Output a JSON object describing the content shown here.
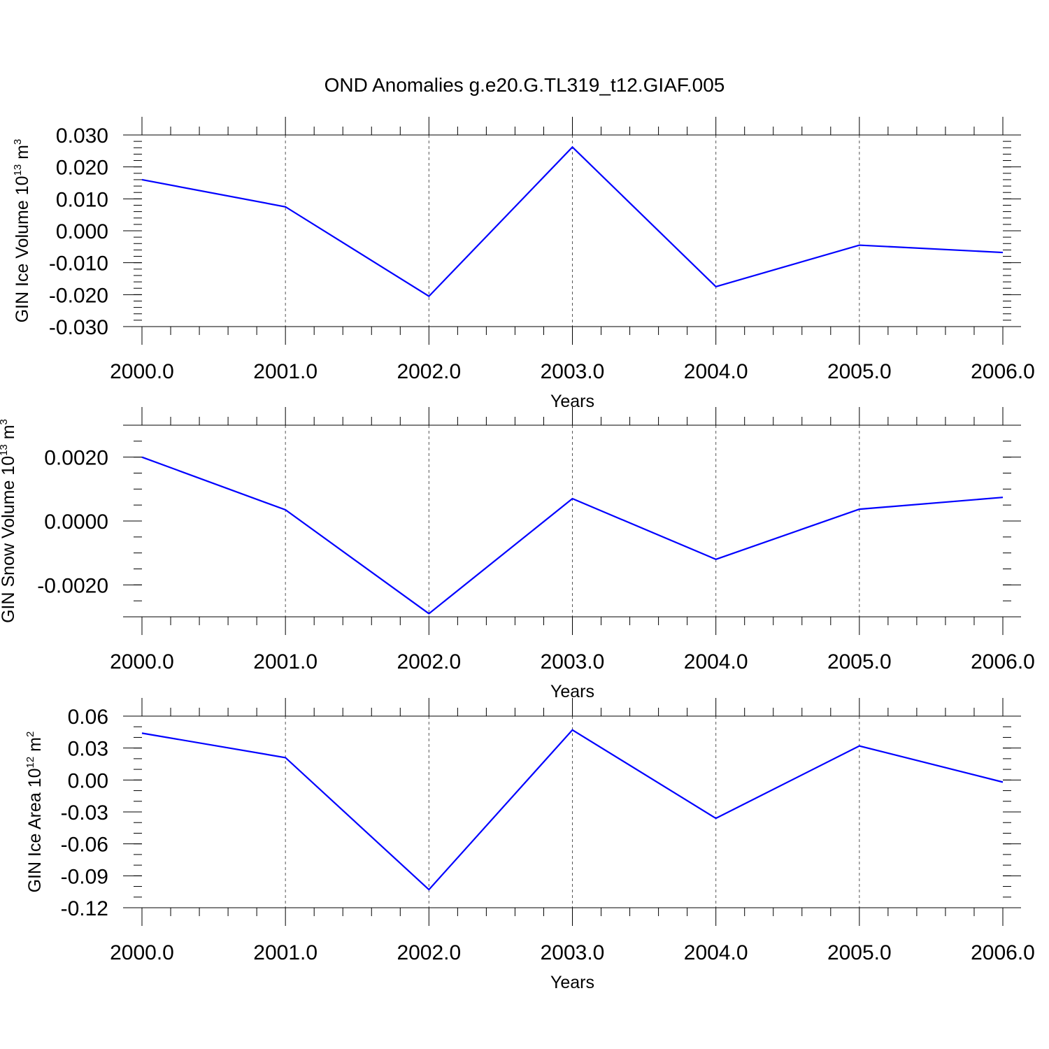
{
  "title": "OND Anomalies g.e20.G.TL319_t12.GIAF.005",
  "colors": {
    "line": "#0000ff",
    "axis": "#000000",
    "grid": "#555555"
  },
  "chart_data": [
    {
      "type": "line",
      "xlabel": "Years",
      "ylabel": {
        "text": "GIN Ice Volume 10",
        "exp": "13",
        "unit": " m",
        "unit_exp": "3"
      },
      "x": [
        2000,
        2001,
        2002,
        2003,
        2004,
        2005,
        2006
      ],
      "xticks": [
        "2000.0",
        "2001.0",
        "2002.0",
        "2003.0",
        "2004.0",
        "2005.0",
        "2006.0"
      ],
      "xlim": [
        2000,
        2006
      ],
      "ylim": [
        -0.03,
        0.03
      ],
      "yticks": [
        0.03,
        0.02,
        0.01,
        0.0,
        -0.01,
        -0.02,
        -0.03
      ],
      "ytick_labels": [
        "0.030",
        "0.020",
        "0.010",
        "0.000",
        "-0.010",
        "-0.020",
        "-0.030"
      ],
      "yminor_step": 0.002,
      "grid": "vertical dashed at major x ticks",
      "series": [
        {
          "values": [
            0.016,
            0.0075,
            -0.0205,
            0.0262,
            -0.0175,
            -0.0045,
            -0.0068
          ]
        }
      ]
    },
    {
      "type": "line",
      "xlabel": "Years",
      "ylabel": {
        "text": "GIN Snow Volume 10",
        "exp": "13",
        "unit": " m",
        "unit_exp": "3"
      },
      "x": [
        2000,
        2001,
        2002,
        2003,
        2004,
        2005,
        2006
      ],
      "xticks": [
        "2000.0",
        "2001.0",
        "2002.0",
        "2003.0",
        "2004.0",
        "2005.0",
        "2006.0"
      ],
      "xlim": [
        2000,
        2006
      ],
      "ylim": [
        -0.003,
        0.003
      ],
      "yticks": [
        0.002,
        0.0,
        -0.002
      ],
      "ytick_labels": [
        "0.0020",
        "0.0000",
        "-0.0020"
      ],
      "yminor_step": 0.0005,
      "grid": "vertical dashed at major x ticks",
      "series": [
        {
          "values": [
            0.002,
            0.00035,
            -0.0029,
            0.0007,
            -0.0012,
            0.00037,
            0.00074
          ]
        }
      ]
    },
    {
      "type": "line",
      "xlabel": "Years",
      "ylabel": {
        "text": "GIN Ice Area 10",
        "exp": "12",
        "unit": " m",
        "unit_exp": "2"
      },
      "x": [
        2000,
        2001,
        2002,
        2003,
        2004,
        2005,
        2006
      ],
      "xticks": [
        "2000.0",
        "2001.0",
        "2002.0",
        "2003.0",
        "2004.0",
        "2005.0",
        "2006.0"
      ],
      "xlim": [
        2000,
        2006
      ],
      "ylim": [
        -0.12,
        0.06
      ],
      "yticks": [
        0.06,
        0.03,
        0.0,
        -0.03,
        -0.06,
        -0.09,
        -0.12
      ],
      "ytick_labels": [
        "0.06",
        "0.03",
        "0.00",
        "-0.03",
        "-0.06",
        "-0.09",
        "-0.12"
      ],
      "yminor_step": 0.01,
      "grid": "vertical dashed at major x ticks",
      "series": [
        {
          "values": [
            0.044,
            0.021,
            -0.103,
            0.047,
            -0.036,
            0.032,
            -0.002
          ]
        }
      ]
    }
  ]
}
